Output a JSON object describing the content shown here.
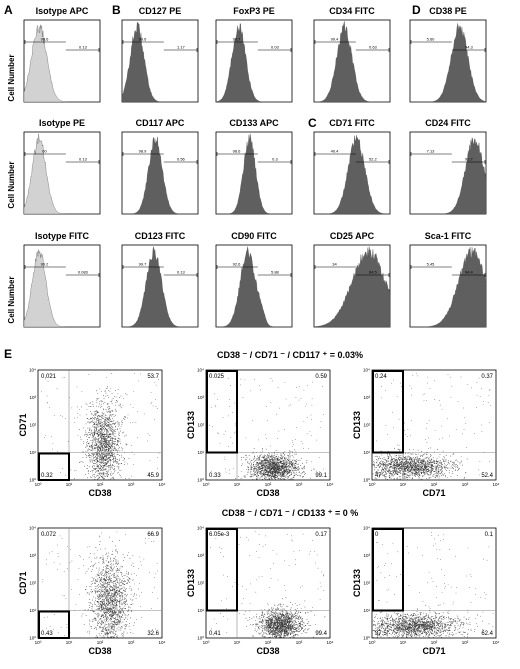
{
  "panel_labels": [
    "A",
    "B",
    "C",
    "D",
    "E"
  ],
  "ylabel_hist": "Cell Number",
  "chart_data": [
    {
      "type": "area",
      "title": "Isotype APC",
      "shade": "light",
      "peak": 0.2,
      "width": 0.1,
      "gates": [
        "98.6",
        "0.13"
      ]
    },
    {
      "type": "area",
      "title": "CD127 PE",
      "shade": "dark",
      "peak": 0.2,
      "width": 0.09,
      "gates": [
        "99.6",
        "1.17"
      ]
    },
    {
      "type": "area",
      "title": "FoxP3 PE",
      "shade": "dark",
      "peak": 0.3,
      "width": 0.09,
      "gates": [
        "98.7",
        "0.03"
      ]
    },
    {
      "type": "area",
      "title": "CD34 FITC",
      "shade": "dark",
      "peak": 0.4,
      "width": 0.1,
      "gates": [
        "99.4",
        "0.63"
      ]
    },
    {
      "type": "area",
      "title": "CD38 PE",
      "shade": "dark",
      "peak": 0.65,
      "width": 0.11,
      "gates": [
        "5.60",
        "94.3"
      ]
    },
    {
      "type": "area",
      "title": "Isotype PE",
      "shade": "light",
      "peak": 0.2,
      "width": 0.09,
      "gates": [
        "60",
        "0.13"
      ]
    },
    {
      "type": "area",
      "title": "CD117 APC",
      "shade": "dark",
      "peak": 0.44,
      "width": 0.09,
      "gates": [
        "98.9",
        "0.56"
      ]
    },
    {
      "type": "area",
      "title": "CD133 APC",
      "shade": "dark",
      "peak": 0.44,
      "width": 0.08,
      "gates": [
        "98.6",
        "0.3"
      ]
    },
    {
      "type": "area",
      "title": "CD71 FITC",
      "shade": "dark",
      "peak": 0.56,
      "width": 0.11,
      "gates": [
        "40.4",
        "52.2"
      ]
    },
    {
      "type": "area",
      "title": "CD24 FITC",
      "shade": "dark",
      "peak": 0.85,
      "width": 0.12,
      "gates": [
        "7.13",
        "92.7"
      ]
    },
    {
      "type": "area",
      "title": "Isotype FITC",
      "shade": "light",
      "peak": 0.2,
      "width": 0.09,
      "gates": [
        "99.2",
        "0.083"
      ]
    },
    {
      "type": "area",
      "title": "CD123 FITC",
      "shade": "dark",
      "peak": 0.42,
      "width": 0.1,
      "gates": [
        "99.7",
        "0.13"
      ]
    },
    {
      "type": "area",
      "title": "CD90 FITC",
      "shade": "dark",
      "peak": 0.42,
      "width": 0.1,
      "gates": [
        "92.6",
        "5.88"
      ]
    },
    {
      "type": "area",
      "title": "CD25 APC",
      "shade": "dark",
      "peak": 0.72,
      "width": 0.22,
      "gates": [
        "34",
        "64.5"
      ]
    },
    {
      "type": "area",
      "title": "Sca-1 FITC",
      "shade": "dark",
      "peak": 0.82,
      "width": 0.18,
      "gates": [
        "5.45",
        "94.4"
      ]
    }
  ],
  "scatter_rows": [
    {
      "heading": "CD38 ⁻ / CD71 ⁻ / CD117 ⁺ = 0.03%",
      "plots": [
        {
          "type": "scatter",
          "xlabel": "CD38",
          "ylabel": "CD71",
          "xlim": [
            0,
            4
          ],
          "ylim": [
            0,
            4
          ],
          "quadrants": [
            "0.021",
            "53.7",
            "0.32",
            "45.9"
          ],
          "gate": [
            0,
            0,
            1,
            1
          ],
          "cluster": {
            "cx": 2.1,
            "cy": 1.3,
            "sx": 0.28,
            "sy": 0.75
          }
        },
        {
          "type": "scatter",
          "xlabel": "CD38",
          "ylabel": "CD133",
          "xlim": [
            0,
            4
          ],
          "ylim": [
            0,
            4
          ],
          "quadrants": [
            "0.025",
            "0.59",
            "0.33",
            "99.1"
          ],
          "gate": [
            0,
            1,
            1,
            4
          ],
          "cluster": {
            "cx": 2.2,
            "cy": 0.45,
            "sx": 0.4,
            "sy": 0.25
          }
        },
        {
          "type": "scatter",
          "xlabel": "CD71",
          "ylabel": "CD133",
          "xlim": [
            0,
            4
          ],
          "ylim": [
            0,
            4
          ],
          "quadrants": [
            "0.24",
            "0.37",
            "47",
            "52.4"
          ],
          "gate": [
            0,
            1,
            1,
            4
          ],
          "cluster": {
            "cx": 1.2,
            "cy": 0.5,
            "sx": 0.65,
            "sy": 0.22
          }
        }
      ]
    },
    {
      "heading": "CD38 ⁻ / CD71 ⁻ / CD133 ⁺ = 0 %",
      "plots": [
        {
          "type": "scatter",
          "xlabel": "CD38",
          "ylabel": "CD71",
          "xlim": [
            0,
            4
          ],
          "ylim": [
            0,
            4
          ],
          "quadrants": [
            "0.072",
            "66.9",
            "0.43",
            "32.6"
          ],
          "gate": [
            0,
            0,
            1,
            1
          ],
          "cluster": {
            "cx": 2.3,
            "cy": 1.3,
            "sx": 0.3,
            "sy": 0.8
          }
        },
        {
          "type": "scatter",
          "xlabel": "CD38",
          "ylabel": "CD133",
          "xlim": [
            0,
            4
          ],
          "ylim": [
            0,
            4
          ],
          "quadrants": [
            "6.05e-3",
            "0.17",
            "0.41",
            "99.4"
          ],
          "gate": [
            0,
            1,
            1,
            4
          ],
          "cluster": {
            "cx": 2.4,
            "cy": 0.5,
            "sx": 0.35,
            "sy": 0.28
          }
        },
        {
          "type": "scatter",
          "xlabel": "CD71",
          "ylabel": "CD133",
          "xlim": [
            0,
            4
          ],
          "ylim": [
            0,
            4
          ],
          "quadrants": [
            "0",
            "0.1",
            "37.5",
            "62.4"
          ],
          "gate": [
            0,
            1,
            1,
            4
          ],
          "cluster": {
            "cx": 1.4,
            "cy": 0.45,
            "sx": 0.7,
            "sy": 0.22
          }
        }
      ]
    }
  ],
  "tick_labels": [
    "10⁰",
    "10¹",
    "10²",
    "10³",
    "10⁴"
  ],
  "colors": {
    "dark": "#5f5f5f",
    "light": "#d2d2d2",
    "dot": "#333333"
  }
}
